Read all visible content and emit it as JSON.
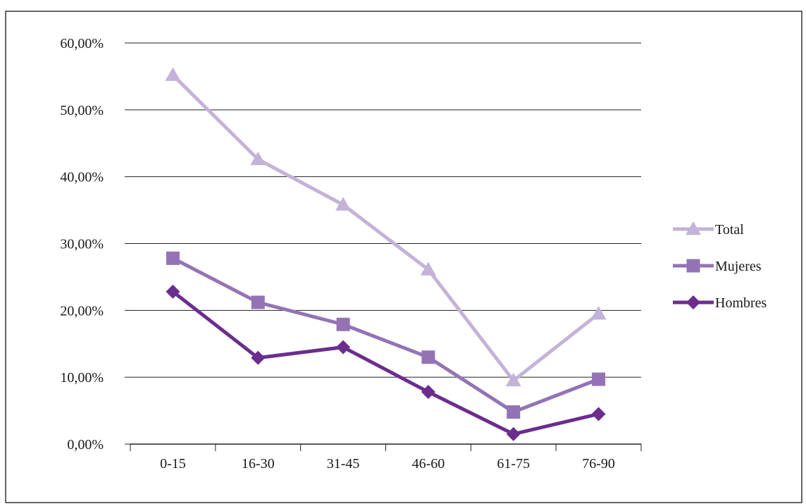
{
  "chart_data": {
    "type": "line",
    "categories": [
      "0-15",
      "16-30",
      "31-45",
      "46-60",
      "61-75",
      "76-90"
    ],
    "series": [
      {
        "name": "Total",
        "values": [
          55.2,
          42.6,
          35.8,
          26.1,
          9.5,
          19.5
        ],
        "color": "#c3b3d8",
        "marker": "triangle"
      },
      {
        "name": "Mujeres",
        "values": [
          27.8,
          21.2,
          17.9,
          13.0,
          4.8,
          9.7
        ],
        "color": "#9473b5",
        "marker": "square"
      },
      {
        "name": "Hombres",
        "values": [
          22.8,
          12.9,
          14.5,
          7.8,
          1.5,
          4.5
        ],
        "color": "#6b2d8e",
        "marker": "diamond"
      }
    ],
    "ylim": [
      0,
      60
    ],
    "yticks": [
      0,
      10,
      20,
      30,
      40,
      50,
      60
    ],
    "ytick_labels": [
      "0,00%",
      "10,00%",
      "20,00%",
      "30,00%",
      "40,00%",
      "50,00%",
      "60,00%"
    ],
    "grid": true,
    "legend_position": "right",
    "title": "",
    "xlabel": "",
    "ylabel": ""
  }
}
